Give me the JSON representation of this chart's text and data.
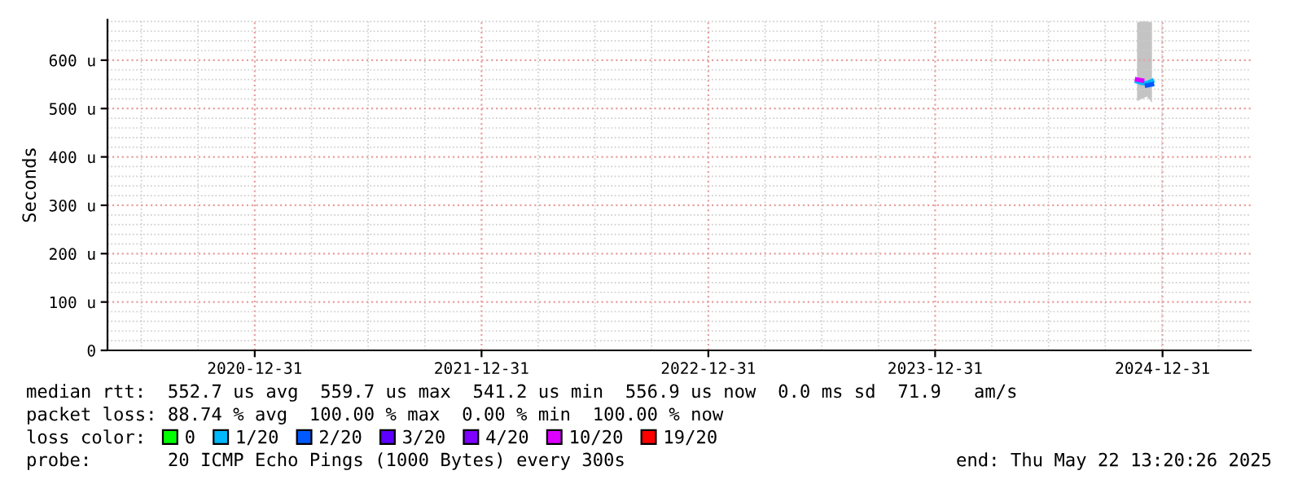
{
  "chart_data": {
    "type": "line",
    "ylabel": "Seconds",
    "x": [
      "2024-11-20",
      "2024-11-28",
      "2024-12-06",
      "2024-12-14"
    ],
    "xlim": [
      "2020-05-08",
      "2025-05-22"
    ],
    "xticks": [
      "2020-12-31",
      "2021-12-31",
      "2022-12-31",
      "2023-12-31",
      "2024-12-31"
    ],
    "ylim": [
      0,
      684
    ],
    "yticks": [
      {
        "value": 0,
        "label": "0"
      },
      {
        "value": 100,
        "label": "100 u"
      },
      {
        "value": 200,
        "label": "200 u"
      },
      {
        "value": 300,
        "label": "300 u"
      },
      {
        "value": 400,
        "label": "400 u"
      },
      {
        "value": 500,
        "label": "500 u"
      },
      {
        "value": 600,
        "label": "600 u"
      }
    ],
    "grid": true,
    "legend": "bottom",
    "line_style": "solid",
    "series": [
      {
        "name": "0",
        "color": "#00ff00",
        "values": [
          null,
          null,
          null,
          null
        ]
      },
      {
        "name": "1/20",
        "color": "#00b8ff",
        "values": [
          556,
          553,
          552,
          557
        ],
        "lower": [
          515,
          520,
          525,
          512
        ],
        "upper": [
          678,
          680,
          680,
          678
        ]
      },
      {
        "name": "2/20",
        "color": "#0059ff",
        "values": [
          null,
          null,
          548,
          550
        ]
      },
      {
        "name": "3/20",
        "color": "#5e00ff",
        "values": [
          null,
          null,
          null,
          null
        ]
      },
      {
        "name": "4/20",
        "color": "#7e00ff",
        "values": [
          null,
          null,
          null,
          null
        ]
      },
      {
        "name": "10/20",
        "color": "#dd00ff",
        "values": [
          560,
          558,
          null,
          null
        ]
      },
      {
        "name": "19/20",
        "color": "#ff0000",
        "values": [
          null,
          null,
          null,
          null
        ]
      }
    ],
    "annotations": [
      "median rtt:  552.7 us avg  559.7 us max  541.2 us min  556.9 us now  0.0 ms sd  71.9   am/s",
      "packet loss: 88.74 % avg  100.00 % max  0.00 % min  100.00 % now",
      "loss color:",
      "probe:       20 ICMP Echo Pings (1000 Bytes) every 300s",
      "end: Thu May 22 13:20:26 2025"
    ]
  }
}
